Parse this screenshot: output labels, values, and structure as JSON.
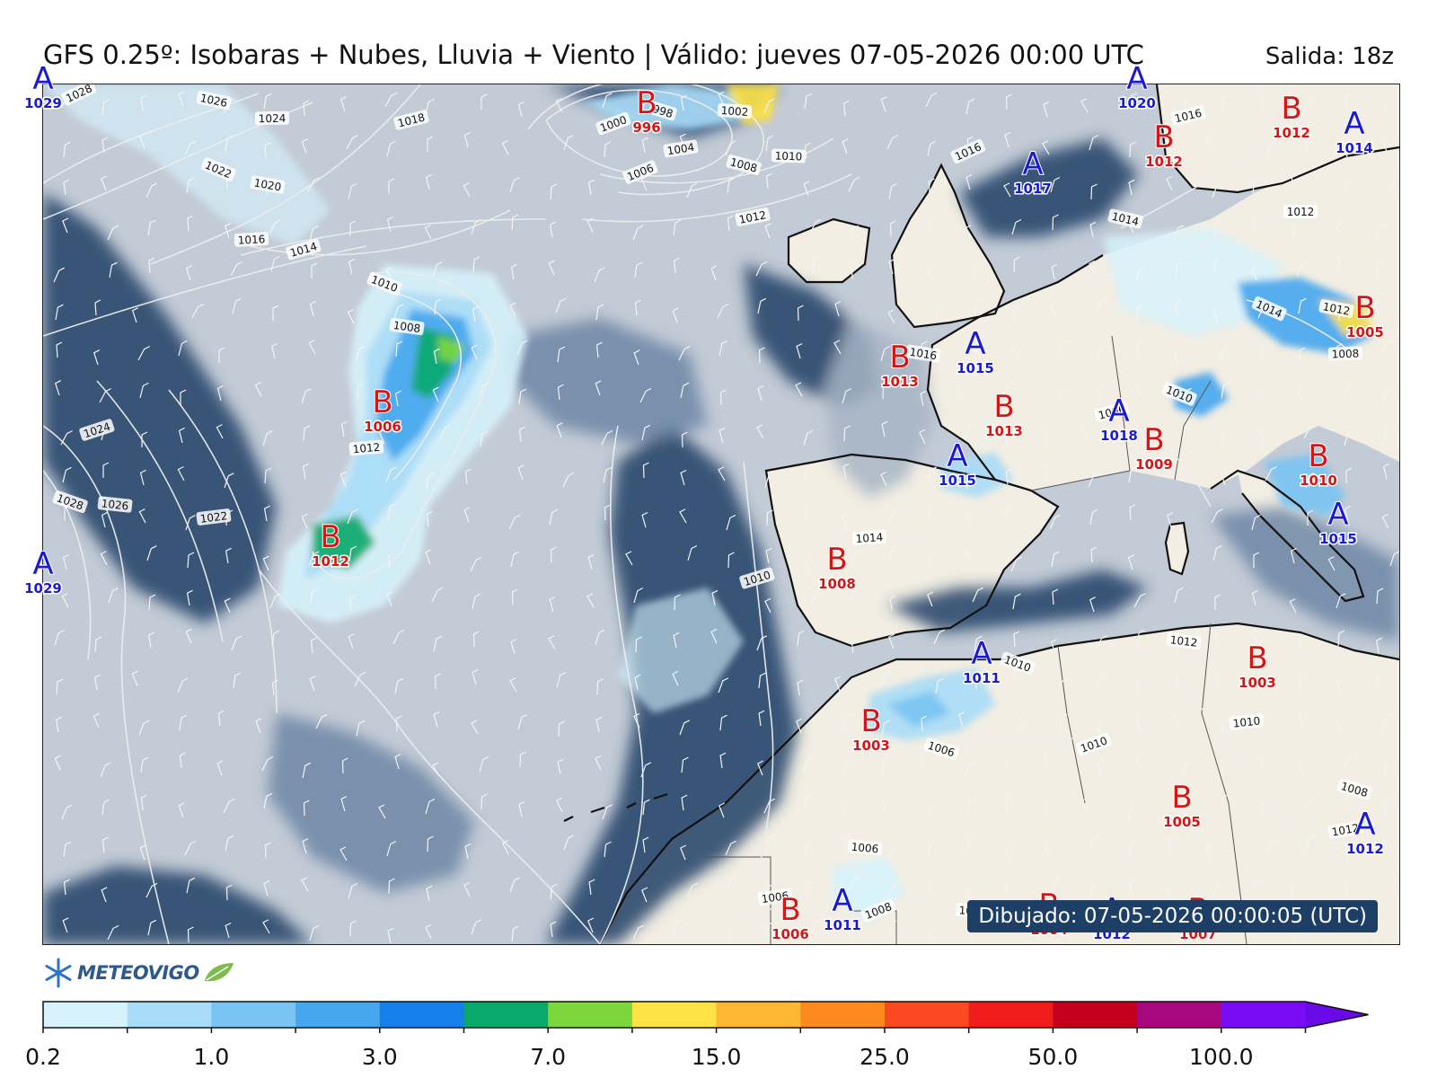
{
  "header": {
    "title": "GFS 0.25º: Isobaras + Nubes, Lluvia + Viento | Válido: jueves 07-05-2026 00:00 UTC",
    "run": "Salida: 18z"
  },
  "map": {
    "isobar_labels": [
      "1028",
      "1026",
      "1024",
      "1018",
      "1022",
      "1020",
      "1016",
      "1014",
      "1010",
      "1008",
      "1012",
      "1024",
      "1028",
      "1026",
      "1022",
      "1000",
      "998",
      "1002",
      "1004",
      "1006",
      "1008",
      "1010",
      "1012",
      "1016",
      "1014",
      "1012",
      "1016",
      "1014",
      "1012",
      "1008",
      "1006",
      "1010",
      "1016",
      "1014",
      "1010",
      "1010",
      "1012",
      "1010",
      "1010",
      "1006",
      "1006",
      "1006",
      "1008",
      "1008",
      "1010",
      "1012"
    ],
    "pressure_centers": [
      {
        "type": "A",
        "value": "1029",
        "color": "#1a1ad6"
      },
      {
        "type": "A",
        "value": "1029",
        "color": "#1a1ad6"
      },
      {
        "type": "B",
        "value": "996",
        "color": "#d81414"
      },
      {
        "type": "A",
        "value": "1020",
        "color": "#1a1ad6"
      },
      {
        "type": "B",
        "value": "1012",
        "color": "#d81414"
      },
      {
        "type": "A",
        "value": "1014",
        "color": "#1a1ad6"
      },
      {
        "type": "B",
        "value": "1012",
        "color": "#d81414"
      },
      {
        "type": "A",
        "value": "1017",
        "color": "#1a1ad6"
      },
      {
        "type": "B",
        "value": "1006",
        "color": "#d81414"
      },
      {
        "type": "B",
        "value": "1012",
        "color": "#d81414"
      },
      {
        "type": "A",
        "value": "1015",
        "color": "#1a1ad6"
      },
      {
        "type": "B",
        "value": "1013",
        "color": "#d81414"
      },
      {
        "type": "B",
        "value": "1013",
        "color": "#d81414"
      },
      {
        "type": "A",
        "value": "1018",
        "color": "#1a1ad6"
      },
      {
        "type": "B",
        "value": "1009",
        "color": "#d81414"
      },
      {
        "type": "B",
        "value": "1005",
        "color": "#d81414"
      },
      {
        "type": "A",
        "value": "1015",
        "color": "#1a1ad6"
      },
      {
        "type": "B",
        "value": "1010",
        "color": "#d81414"
      },
      {
        "type": "A",
        "value": "1015",
        "color": "#1a1ad6"
      },
      {
        "type": "B",
        "value": "1008",
        "color": "#d81414"
      },
      {
        "type": "A",
        "value": "1011",
        "color": "#1a1ad6"
      },
      {
        "type": "B",
        "value": "1003",
        "color": "#d81414"
      },
      {
        "type": "B",
        "value": "1003",
        "color": "#d81414"
      },
      {
        "type": "B",
        "value": "1005",
        "color": "#d81414"
      },
      {
        "type": "A",
        "value": "1012",
        "color": "#1a1ad6"
      },
      {
        "type": "B",
        "value": "1006",
        "color": "#d81414"
      },
      {
        "type": "A",
        "value": "1011",
        "color": "#1a1ad6"
      },
      {
        "type": "B",
        "value": "1004",
        "color": "#d81414"
      },
      {
        "type": "A",
        "value": "1012",
        "color": "#1a1ad6"
      },
      {
        "type": "B",
        "value": "1007",
        "color": "#d81414"
      }
    ],
    "colors": {
      "ocean": "#c3cbd6",
      "land": "#f2eee3",
      "cloud_dark": "#1f3e66",
      "cloud_mid": "#6d86a6",
      "cloud_light": "#a7b5c6"
    }
  },
  "footer": {
    "drawn": "Dibujado: 07-05-2026 00:00:05 (UTC)",
    "logo": "METEOVIGO",
    "logo_icon": "snowflake-icon"
  },
  "colorbar": {
    "colors": [
      "#d6f3fd",
      "#a8dcf7",
      "#79c4f2",
      "#46a6ee",
      "#1580ea",
      "#0aa86a",
      "#7ed63d",
      "#fde245",
      "#fdb733",
      "#fd8a1f",
      "#fb4a1f",
      "#f11c1c",
      "#c5001e",
      "#a8087e",
      "#7a0cf5",
      "#6b0ae8"
    ],
    "tick_labels": [
      "0.2",
      "1.0",
      "3.0",
      "7.0",
      "15.0",
      "25.0",
      "50.0",
      "100.0"
    ]
  }
}
